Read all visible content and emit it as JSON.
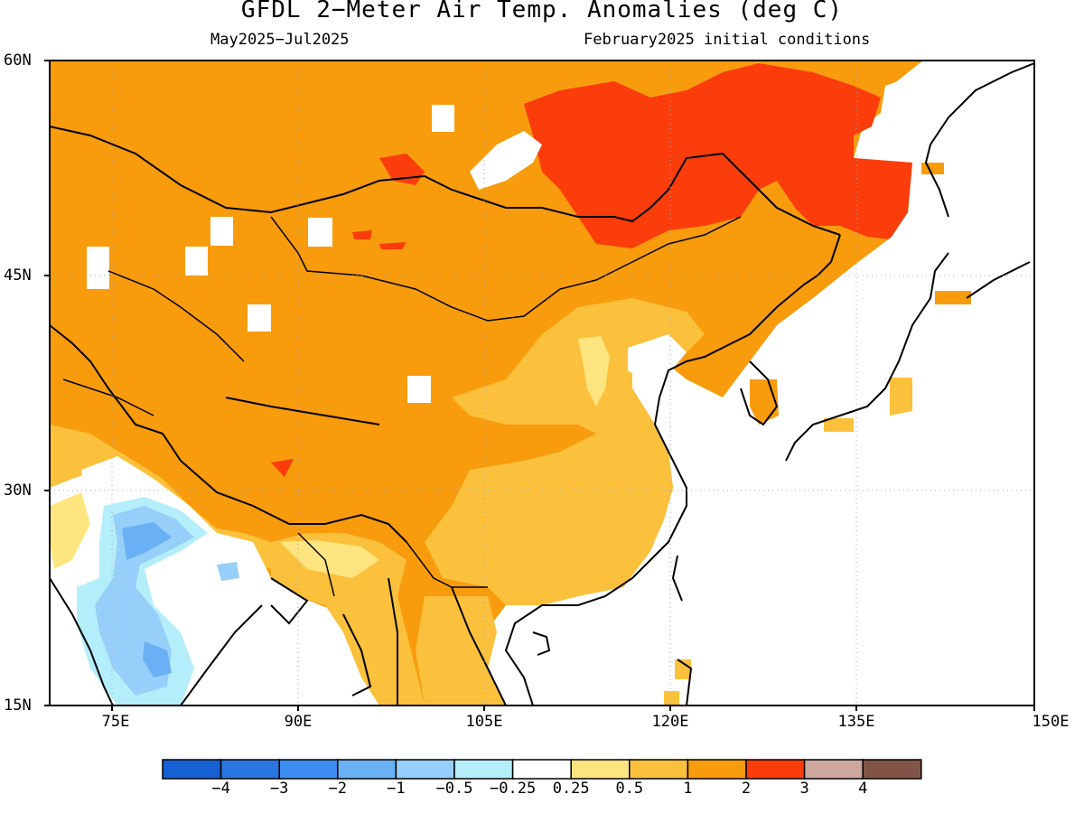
{
  "title": "GFDL 2−Meter Air Temp. Anomalies (deg C)",
  "subtitle_left": "May2025−Jul2025",
  "subtitle_right": "February2025 initial conditions",
  "lat_labels": [
    "60N",
    "45N",
    "30N",
    "15N"
  ],
  "lon_labels": [
    "75E",
    "90E",
    "105E",
    "120E",
    "135E",
    "150E"
  ],
  "colorbar": {
    "labels": [
      "−4",
      "−3",
      "−2",
      "−1",
      "−0.5",
      "−0.25",
      "0.25",
      "0.5",
      "1",
      "2",
      "3",
      "4"
    ],
    "colors": [
      "#1560d2",
      "#2a76e0",
      "#3d8ef0",
      "#6ab0f5",
      "#96cff9",
      "#b4eefa",
      "#ffffff",
      "#ffe57f",
      "#fbc13c",
      "#f89b0d",
      "#fb3c0b",
      "#cda79d",
      "#805548"
    ]
  }
}
